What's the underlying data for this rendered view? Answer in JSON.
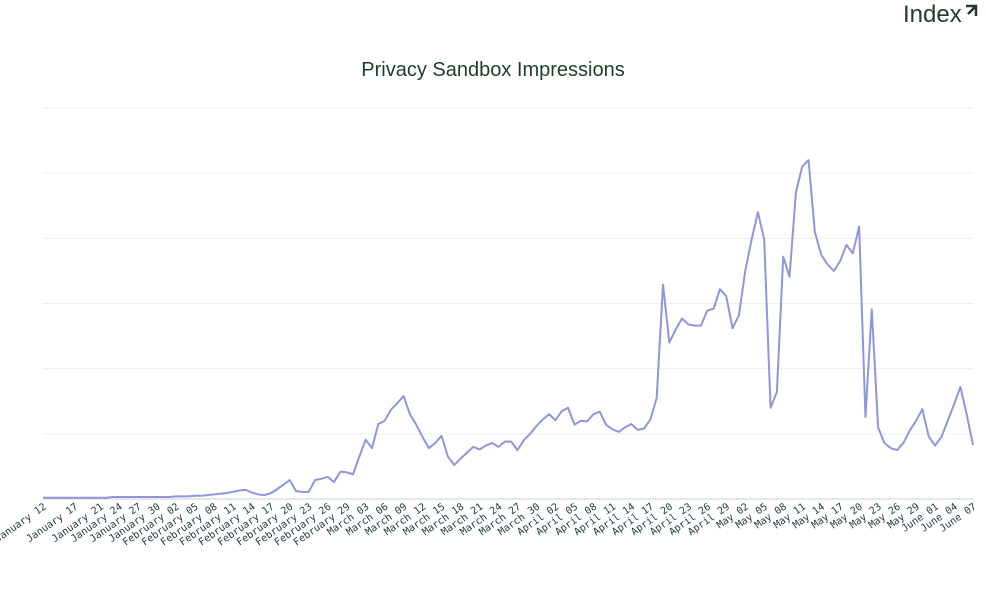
{
  "brand": "Index",
  "chart_data": {
    "type": "line",
    "title": "Privacy Sandbox Impressions",
    "categories": [
      "January 12",
      null,
      null,
      null,
      null,
      "January 17",
      null,
      null,
      null,
      "January 21",
      null,
      null,
      "January 24",
      null,
      null,
      "January 27",
      null,
      null,
      "January 30",
      null,
      null,
      "February 02",
      null,
      null,
      "February 05",
      null,
      null,
      "February 08",
      null,
      null,
      "February 11",
      null,
      null,
      "February 14",
      null,
      null,
      "February 17",
      null,
      null,
      "February 20",
      null,
      null,
      "February 23",
      null,
      null,
      "February 26",
      null,
      null,
      "February 29",
      null,
      null,
      "March 03",
      null,
      null,
      "March 06",
      null,
      null,
      "March 09",
      null,
      null,
      "March 12",
      null,
      null,
      "March 15",
      null,
      null,
      "March 18",
      null,
      null,
      "March 21",
      null,
      null,
      "March 24",
      null,
      null,
      "March 27",
      null,
      null,
      "March 30",
      null,
      null,
      "April 02",
      null,
      null,
      "April 05",
      null,
      null,
      "April 08",
      null,
      null,
      "April 11",
      null,
      null,
      "April 14",
      null,
      null,
      "April 17",
      null,
      null,
      "April 20",
      null,
      null,
      "April 23",
      null,
      null,
      "April 26",
      null,
      null,
      "April 29",
      null,
      null,
      "May 02",
      null,
      null,
      "May 05",
      null,
      null,
      "May 08",
      null,
      null,
      "May 11",
      null,
      null,
      "May 14",
      null,
      null,
      "May 17",
      null,
      null,
      "May 20",
      null,
      null,
      "May 23",
      null,
      null,
      "May 26",
      null,
      null,
      "May 29",
      null,
      null,
      "June 01",
      null,
      null,
      "June 04",
      null,
      null,
      "June 07"
    ],
    "values": [
      0.02,
      0.02,
      0.02,
      0.02,
      0.02,
      0.02,
      0.02,
      0.02,
      0.02,
      0.02,
      0.02,
      0.03,
      0.03,
      0.03,
      0.03,
      0.03,
      0.03,
      0.03,
      0.03,
      0.03,
      0.03,
      0.04,
      0.04,
      0.04,
      0.05,
      0.05,
      0.06,
      0.07,
      0.08,
      0.09,
      0.11,
      0.13,
      0.14,
      0.1,
      0.07,
      0.06,
      0.09,
      0.15,
      0.22,
      0.29,
      0.12,
      0.11,
      0.11,
      0.29,
      0.31,
      0.34,
      0.26,
      0.42,
      0.41,
      0.38,
      0.65,
      0.91,
      0.78,
      1.15,
      1.2,
      1.37,
      1.47,
      1.58,
      1.3,
      1.14,
      0.95,
      0.78,
      0.86,
      0.97,
      0.65,
      0.52,
      0.62,
      0.71,
      0.8,
      0.76,
      0.82,
      0.86,
      0.8,
      0.88,
      0.88,
      0.75,
      0.9,
      1.0,
      1.12,
      1.22,
      1.3,
      1.21,
      1.35,
      1.4,
      1.14,
      1.2,
      1.19,
      1.3,
      1.34,
      1.14,
      1.07,
      1.03,
      1.1,
      1.15,
      1.06,
      1.08,
      1.22,
      1.55,
      3.29,
      2.4,
      2.6,
      2.77,
      2.68,
      2.66,
      2.66,
      2.89,
      2.92,
      3.22,
      3.11,
      2.62,
      2.82,
      3.5,
      3.98,
      4.4,
      3.98,
      1.4,
      1.64,
      3.72,
      3.41,
      4.7,
      5.1,
      5.2,
      4.1,
      3.75,
      3.6,
      3.5,
      3.65,
      3.9,
      3.77,
      4.18,
      1.26,
      2.91,
      1.1,
      0.86,
      0.78,
      0.75,
      0.86,
      1.05,
      1.2,
      1.38,
      0.96,
      0.82,
      0.95,
      1.2,
      1.45,
      1.72,
      1.3,
      0.83
    ],
    "color": "#8e96dc",
    "ylim": [
      0,
      6
    ],
    "yticks": [
      0,
      1,
      2,
      3,
      4,
      5,
      6
    ],
    "grid": true
  }
}
